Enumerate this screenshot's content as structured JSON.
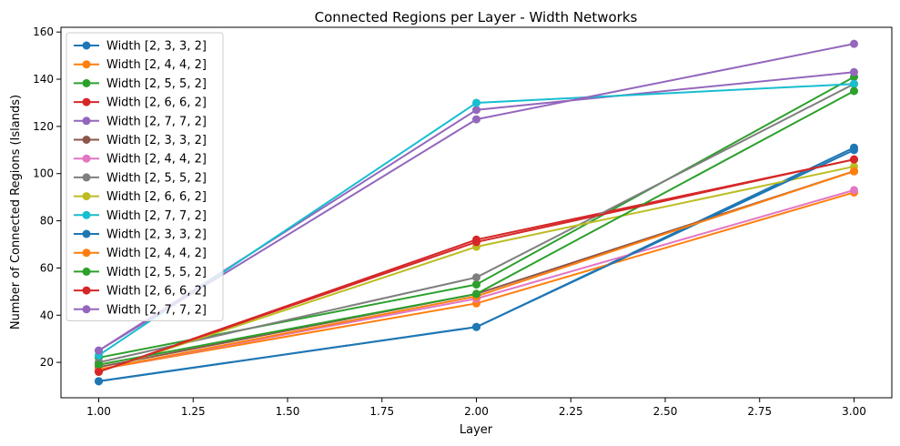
{
  "chart_data": {
    "type": "line",
    "title": "Connected Regions per Layer - Width Networks",
    "xlabel": "Layer",
    "ylabel": "Number of Connected Regions (Islands)",
    "xlim": [
      0.9,
      3.1
    ],
    "ylim": [
      5,
      162
    ],
    "x_ticks": [
      "1.00",
      "1.25",
      "1.50",
      "1.75",
      "2.00",
      "2.25",
      "2.50",
      "2.75",
      "3.00"
    ],
    "x_tick_values": [
      1.0,
      1.25,
      1.5,
      1.75,
      2.0,
      2.25,
      2.5,
      2.75,
      3.0
    ],
    "y_ticks": [
      "20",
      "40",
      "60",
      "80",
      "100",
      "120",
      "140",
      "160"
    ],
    "y_tick_values": [
      20,
      40,
      60,
      80,
      100,
      120,
      140,
      160
    ],
    "grid": false,
    "legend_position": "top-left",
    "x": [
      1,
      2,
      3
    ],
    "series": [
      {
        "name": "Width [2, 3, 3, 2]",
        "color": "#1f77b4",
        "values": [
          12,
          35,
          111
        ]
      },
      {
        "name": "Width [2, 4, 4, 2]",
        "color": "#ff7f0e",
        "values": [
          17,
          45,
          92
        ]
      },
      {
        "name": "Width [2, 5, 5, 2]",
        "color": "#2ca02c",
        "values": [
          22,
          53,
          141
        ]
      },
      {
        "name": "Width [2, 6, 6, 2]",
        "color": "#d62728",
        "values": [
          16,
          72,
          106
        ]
      },
      {
        "name": "Width [2, 7, 7, 2]",
        "color": "#9467bd",
        "values": [
          25,
          127,
          143
        ]
      },
      {
        "name": "Width [2, 3, 3, 2]",
        "color": "#8c564b",
        "values": [
          18,
          49,
          101
        ]
      },
      {
        "name": "Width [2, 4, 4, 2]",
        "color": "#e377c2",
        "values": [
          17,
          47,
          93
        ]
      },
      {
        "name": "Width [2, 5, 5, 2]",
        "color": "#7f7f7f",
        "values": [
          20,
          56,
          138
        ]
      },
      {
        "name": "Width [2, 6, 6, 2]",
        "color": "#bcbd22",
        "values": [
          16,
          69,
          103
        ]
      },
      {
        "name": "Width [2, 7, 7, 2]",
        "color": "#17becf",
        "values": [
          23,
          130,
          138
        ]
      },
      {
        "name": "Width [2, 3, 3, 2]",
        "color": "#1f77b4",
        "values": [
          12,
          35,
          110
        ]
      },
      {
        "name": "Width [2, 4, 4, 2]",
        "color": "#ff7f0e",
        "values": [
          17,
          48,
          101
        ]
      },
      {
        "name": "Width [2, 5, 5, 2]",
        "color": "#2ca02c",
        "values": [
          19,
          49,
          135
        ]
      },
      {
        "name": "Width [2, 6, 6, 2]",
        "color": "#d62728",
        "values": [
          16,
          71,
          106
        ]
      },
      {
        "name": "Width [2, 7, 7, 2]",
        "color": "#9467bd",
        "values": [
          25,
          123,
          155
        ]
      }
    ]
  }
}
